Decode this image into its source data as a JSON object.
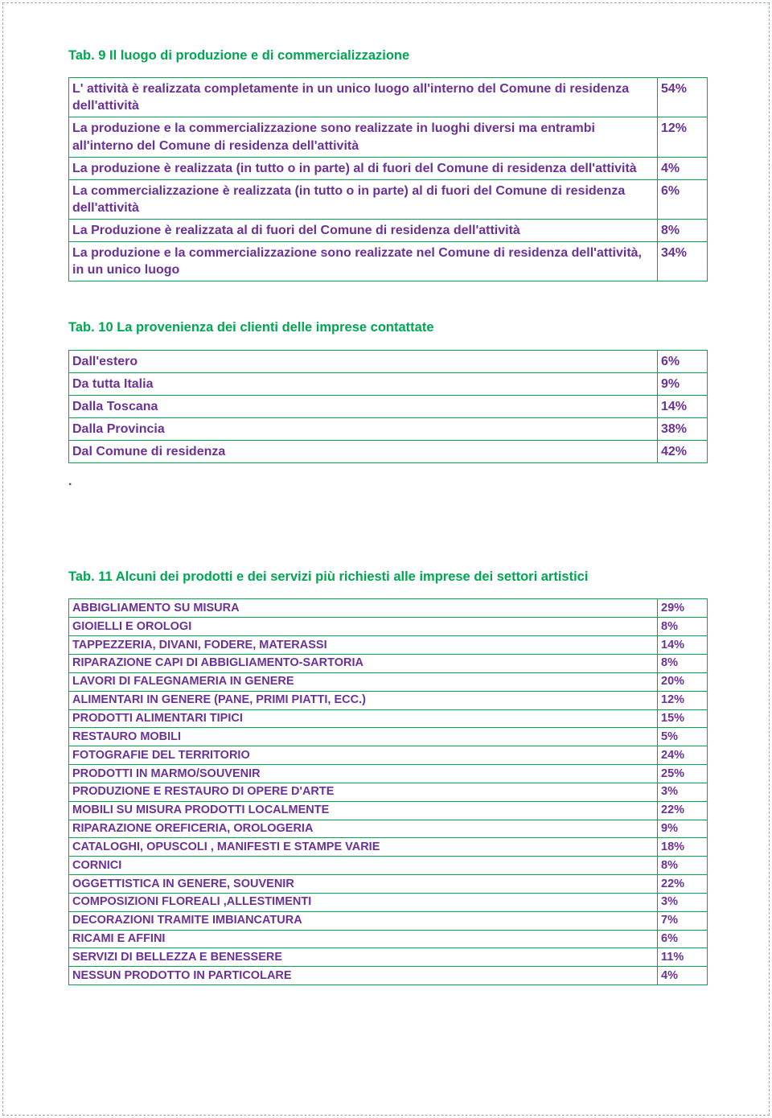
{
  "colors": {
    "title": "#00a651",
    "cell_text": "#6a3296",
    "cell_border": "#00a651",
    "page_border": "#9ca3af",
    "background": "#ffffff"
  },
  "typography": {
    "title_fontsize_pt": 12.5,
    "cell_fontsize_pt_t9_t10": 12,
    "cell_fontsize_pt_t11": 11,
    "font_family": "Arial"
  },
  "tab9": {
    "title": "Tab. 9 Il luogo di produzione e di commercializzazione",
    "rows": [
      {
        "label": "L' attività è realizzata completamente in un unico luogo all'interno del Comune di residenza dell'attività",
        "value": "54%"
      },
      {
        "label": "La produzione e la commercializzazione sono realizzate in luoghi diversi ma entrambi all'interno del Comune di residenza dell'attività",
        "value": "12%"
      },
      {
        "label": "La produzione è realizzata (in tutto o in parte) al di fuori del Comune di residenza dell'attività",
        "value": "4%"
      },
      {
        "label": "La commercializzazione è realizzata (in tutto o in parte) al di fuori del Comune di residenza dell'attività",
        "value": "6%"
      },
      {
        "label": "La Produzione è realizzata  al di fuori del Comune di residenza dell'attività",
        "value": "8%"
      },
      {
        "label": "La produzione e la commercializzazione sono  realizzate nel Comune di residenza dell'attività, in un unico luogo",
        "value": "34%"
      }
    ]
  },
  "tab10": {
    "title": "Tab. 10 La provenienza dei clienti delle imprese contattate",
    "rows": [
      {
        "label": "Dall'estero",
        "value": "6%"
      },
      {
        "label": "Da tutta Italia",
        "value": "9%"
      },
      {
        "label": "Dalla Toscana",
        "value": "14%"
      },
      {
        "label": "Dalla Provincia",
        "value": "38%"
      },
      {
        "label": "Dal Comune di residenza",
        "value": "42%"
      }
    ]
  },
  "dot_after_tab10": ".",
  "tab11": {
    "title": "Tab. 11 Alcuni dei prodotti e dei servizi più richiesti alle imprese dei settori artistici",
    "rows": [
      {
        "label": "ABBIGLIAMENTO SU MISURA",
        "value": "29%"
      },
      {
        "label": "GIOIELLI E OROLOGI",
        "value": "8%"
      },
      {
        "label": "TAPPEZZERIA, DIVANI, FODERE, MATERASSI",
        "value": "14%"
      },
      {
        "label": "RIPARAZIONE CAPI  DI ABBIGLIAMENTO-SARTORIA",
        "value": "8%"
      },
      {
        "label": "LAVORI DI FALEGNAMERIA IN GENERE",
        "value": "20%"
      },
      {
        "label": "ALIMENTARI IN GENERE (PANE, PRIMI PIATTI, ECC.)",
        "value": "12%"
      },
      {
        "label": "PRODOTTI ALIMENTARI TIPICI",
        "value": "15%"
      },
      {
        "label": "RESTAURO MOBILI",
        "value": "5%"
      },
      {
        "label": "FOTOGRAFIE  DEL TERRITORIO",
        "value": "24%"
      },
      {
        "label": "PRODOTTI IN MARMO/SOUVENIR",
        "value": "25%"
      },
      {
        "label": "PRODUZIONE E RESTAURO DI OPERE D'ARTE",
        "value": "3%"
      },
      {
        "label": "MOBILI SU MISURA PRODOTTI LOCALMENTE",
        "value": "22%"
      },
      {
        "label": "RIPARAZIONE OREFICERIA, OROLOGERIA",
        "value": "9%"
      },
      {
        "label": "CATALOGHI, OPUSCOLI , MANIFESTI E STAMPE VARIE",
        "value": "18%"
      },
      {
        "label": "CORNICI",
        "value": "8%"
      },
      {
        "label": "OGGETTISTICA IN GENERE, SOUVENIR",
        "value": "22%"
      },
      {
        "label": "COMPOSIZIONI FLOREALI ,ALLESTIMENTI",
        "value": "3%"
      },
      {
        "label": "DECORAZIONI TRAMITE IMBIANCATURA",
        "value": "7%"
      },
      {
        "label": "RICAMI E AFFINI",
        "value": "6%"
      },
      {
        "label": "SERVIZI DI BELLEZZA E BENESSERE",
        "value": "11%"
      },
      {
        "label": "NESSUN PRODOTTO IN PARTICOLARE",
        "value": "4%"
      }
    ]
  }
}
